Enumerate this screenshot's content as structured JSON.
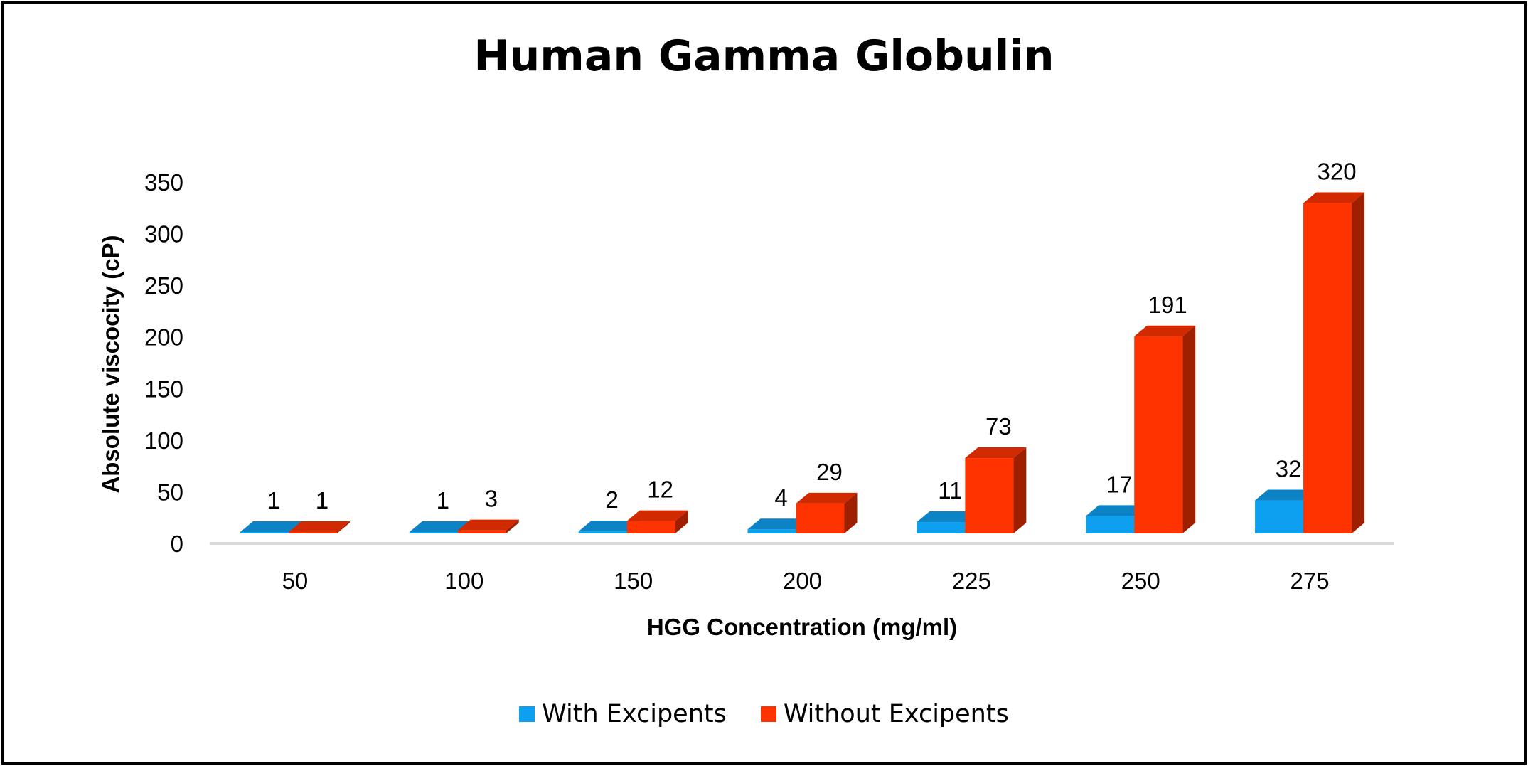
{
  "chart_data": {
    "type": "bar",
    "title": "Human Gamma Globulin",
    "xlabel": "HGG Concentration  (mg/ml)",
    "ylabel": "Absolute viscocity (cP)",
    "categories": [
      "50",
      "100",
      "150",
      "200",
      "225",
      "250",
      "275"
    ],
    "series": [
      {
        "name": "With Excipents",
        "values": [
          1,
          1,
          2,
          4,
          11,
          17,
          32
        ],
        "color": "#0ea0f0"
      },
      {
        "name": "Without Excipents",
        "values": [
          1,
          3,
          12,
          29,
          73,
          191,
          320
        ],
        "color": "#ff3300"
      }
    ],
    "ylim": [
      0,
      350
    ],
    "yticks": [
      0,
      50,
      100,
      150,
      200,
      250,
      300,
      350
    ],
    "grid": false,
    "legend_position": "bottom",
    "style": "3d-column"
  }
}
